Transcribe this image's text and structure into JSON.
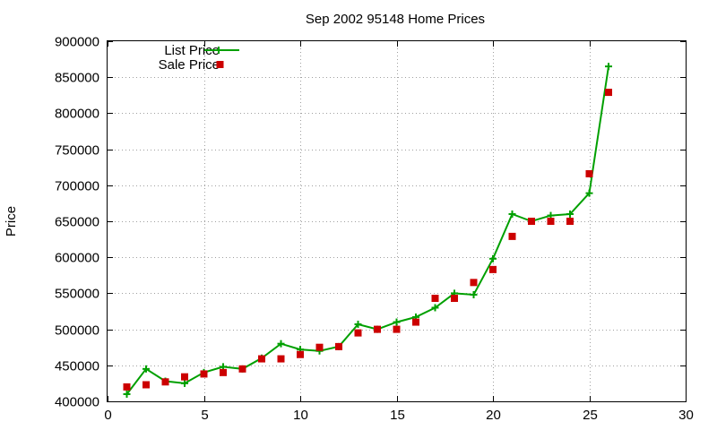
{
  "chart_data": {
    "type": "line",
    "title": "Sep 2002 95148 Home Prices",
    "xlabel": "",
    "ylabel": "Price",
    "xlim": [
      0,
      30
    ],
    "ylim": [
      400000,
      900000
    ],
    "x_ticks": [
      0,
      5,
      10,
      15,
      20,
      25,
      30
    ],
    "y_ticks": [
      400000,
      450000,
      500000,
      550000,
      600000,
      650000,
      700000,
      750000,
      800000,
      850000,
      900000
    ],
    "grid": true,
    "legend_position": "top-left",
    "series": [
      {
        "name": "List Price",
        "style": "line+cross",
        "color": "#00a000",
        "x": [
          1,
          2,
          3,
          4,
          5,
          6,
          7,
          8,
          9,
          10,
          11,
          12,
          13,
          14,
          15,
          16,
          17,
          18,
          19,
          20,
          21,
          22,
          23,
          24,
          25,
          26
        ],
        "y": [
          410000,
          445000,
          428000,
          425000,
          440000,
          448000,
          445000,
          460000,
          480000,
          472000,
          470000,
          476000,
          507000,
          500000,
          510000,
          517000,
          530000,
          550000,
          548000,
          598000,
          660000,
          650000,
          658000,
          660000,
          689000,
          865000
        ]
      },
      {
        "name": "Sale Price",
        "style": "square",
        "color": "#cc0000",
        "x": [
          1,
          2,
          3,
          4,
          5,
          6,
          7,
          8,
          9,
          10,
          11,
          12,
          13,
          14,
          15,
          16,
          17,
          18,
          19,
          20,
          21,
          22,
          23,
          24,
          25,
          26
        ],
        "y": [
          420000,
          423000,
          427000,
          434000,
          438000,
          440000,
          445000,
          459000,
          459000,
          465000,
          475000,
          476000,
          495000,
          500000,
          500000,
          510000,
          543000,
          543000,
          565000,
          583000,
          629000,
          650000,
          650000,
          650000,
          716000,
          829000
        ]
      }
    ]
  }
}
